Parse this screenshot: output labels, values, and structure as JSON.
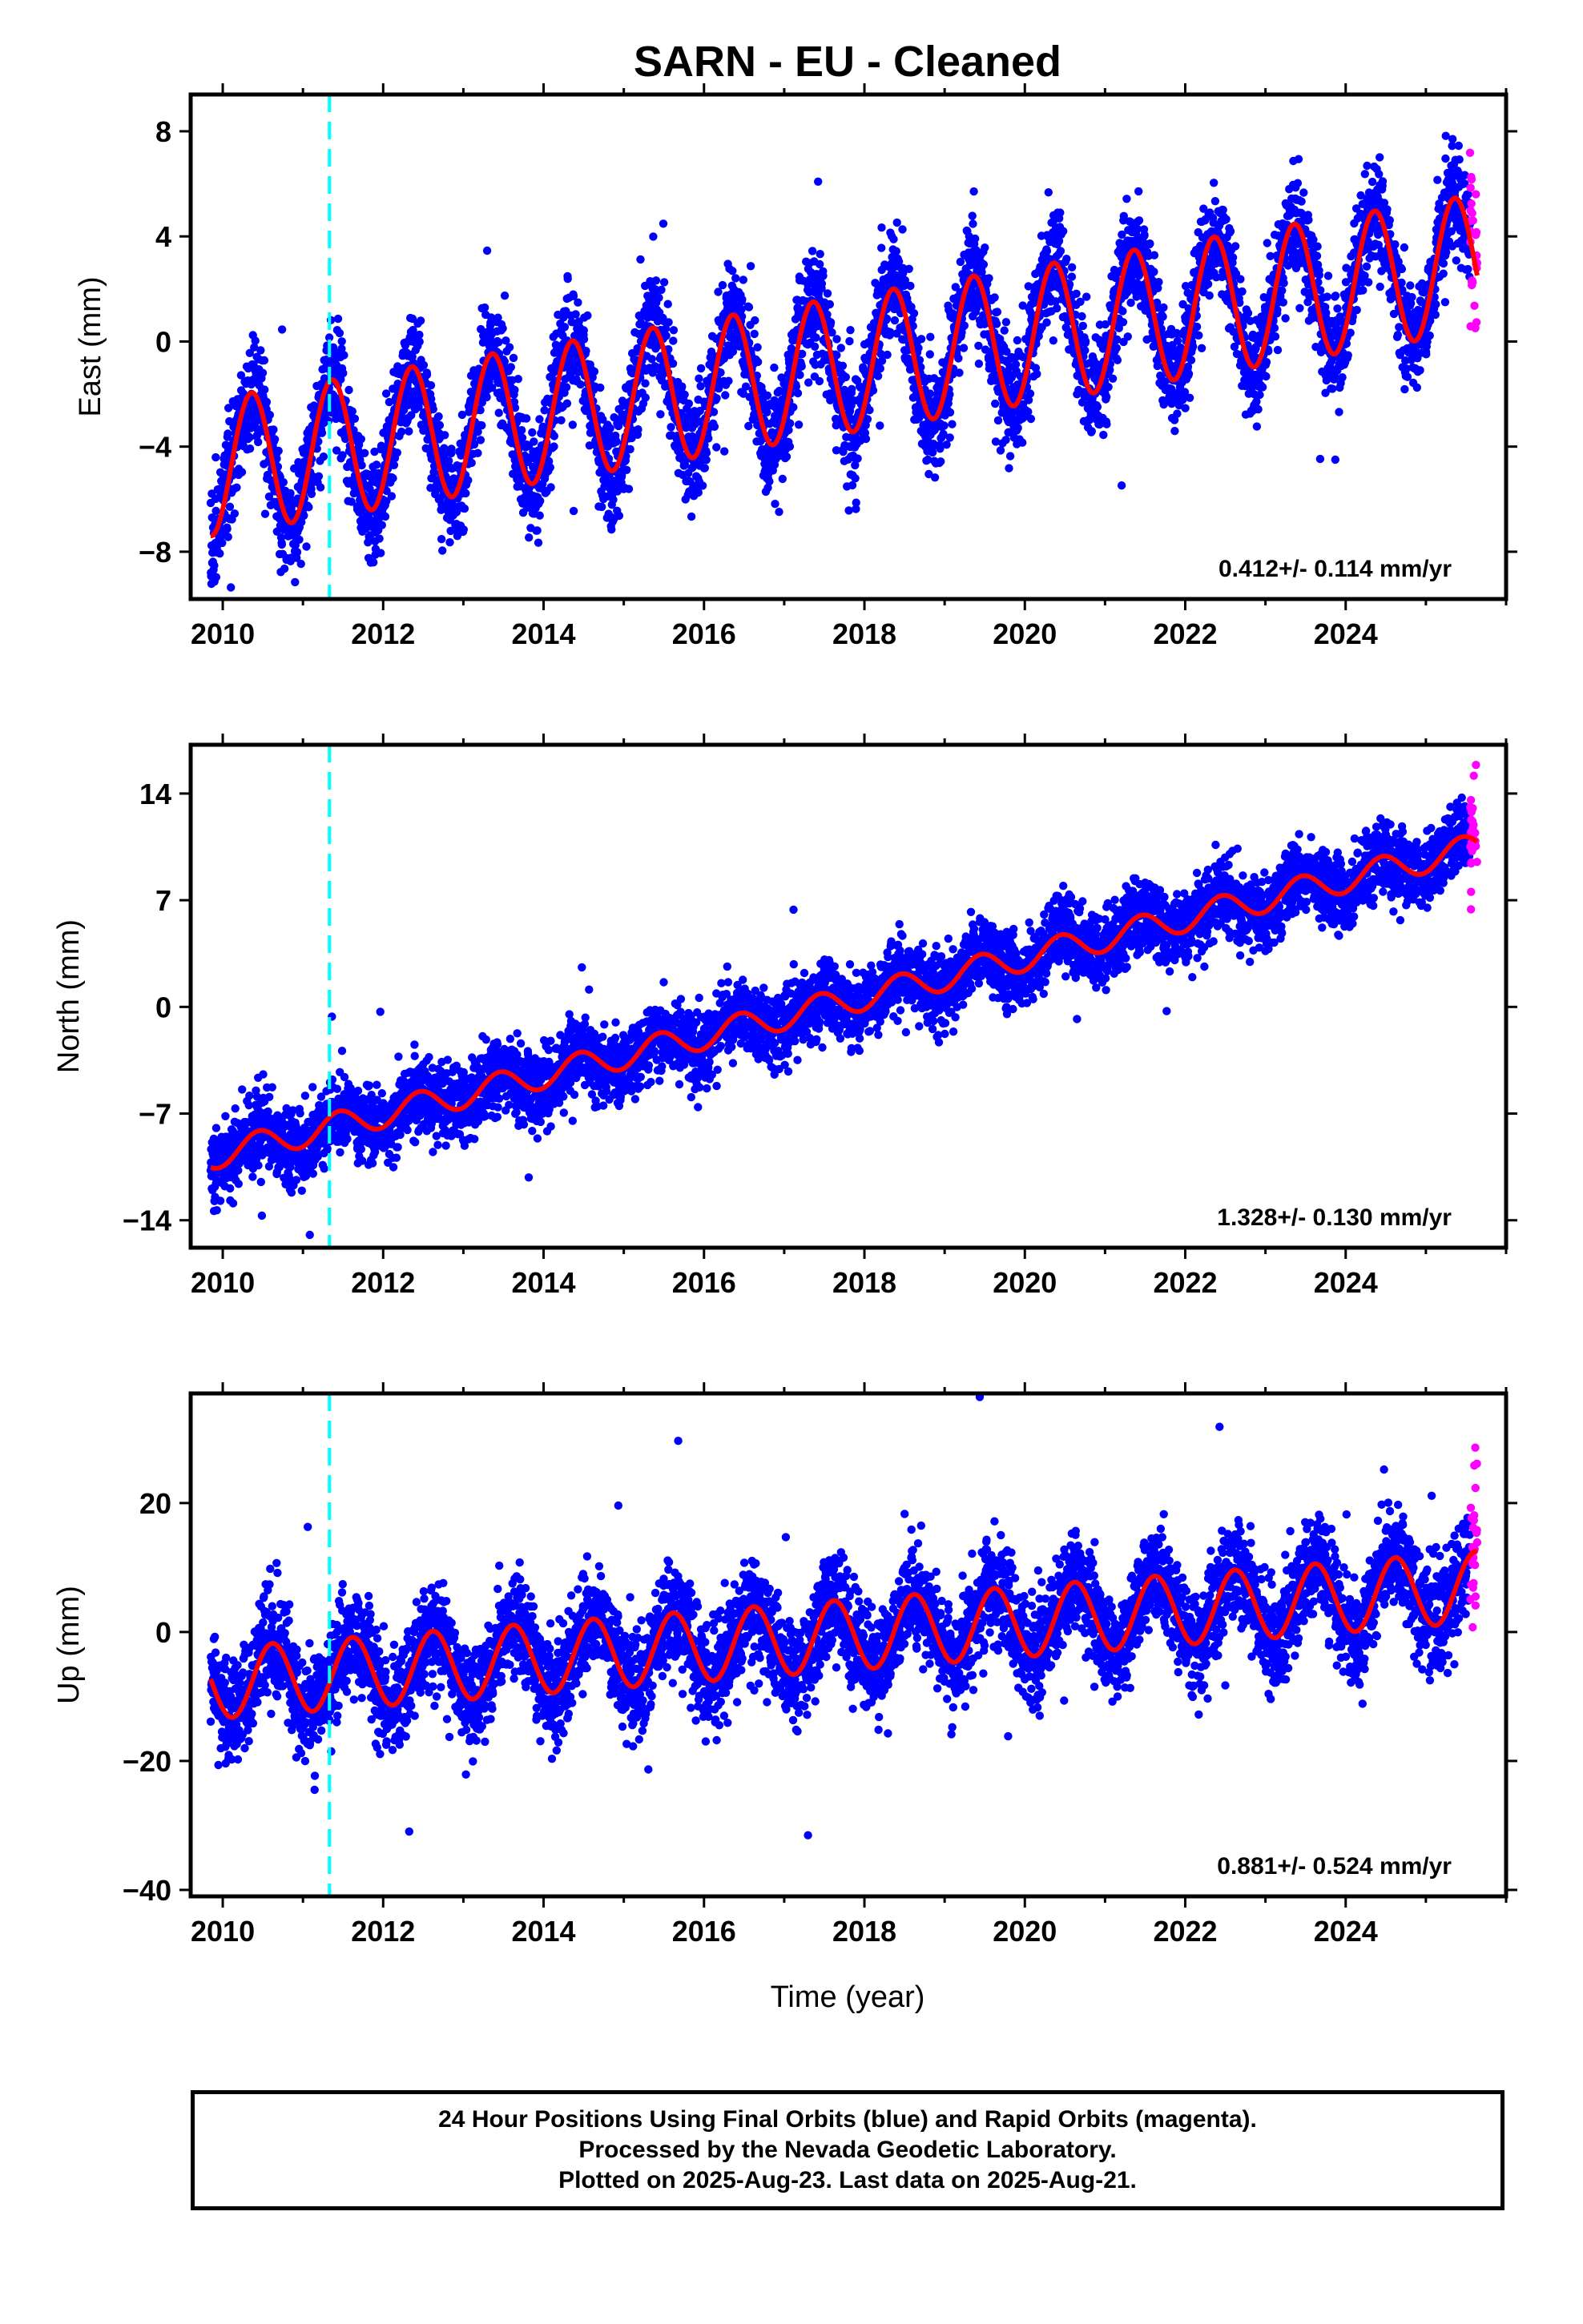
{
  "title": "SARN  - EU - Cleaned",
  "xlabel": "Time (year)",
  "colors": {
    "final_orbits": "#0000ff",
    "rapid_orbits": "#ff00ff",
    "model_fit": "#ff0000",
    "event_line": "#00ffff",
    "axis": "#000000"
  },
  "footer": {
    "line1": "24 Hour Positions Using Final Orbits (blue) and Rapid Orbits (magenta).",
    "line2": "Processed by the Nevada Geodetic Laboratory.",
    "line3": "Plotted on 2025-Aug-23. Last data on 2025-Aug-21."
  },
  "chart_data": [
    {
      "type": "scatter",
      "ylabel": "East (mm)",
      "xlim": [
        2009.6,
        2026.0
      ],
      "ylim": [
        -9.8,
        9.4
      ],
      "xticks": [
        2010,
        2012,
        2014,
        2016,
        2018,
        2020,
        2022,
        2024
      ],
      "yticks": [
        -8,
        -4,
        0,
        4,
        8
      ],
      "rate": "0.412+/- 0.114 mm/yr",
      "event_line_x": 2011.33,
      "data_start": 2009.85,
      "data_end": 2025.64,
      "rapid_start": 2025.55,
      "model": {
        "start_value": -4.8,
        "end_value": 3.0,
        "annual_amplitude": 2.6,
        "annual_peak_phase": 0.36,
        "noise_sd": 1.0
      },
      "series": [
        {
          "name": "Final Orbits (blue)"
        },
        {
          "name": "Rapid Orbits (magenta)"
        }
      ]
    },
    {
      "type": "scatter",
      "ylabel": "North (mm)",
      "xlim": [
        2009.6,
        2026.0
      ],
      "ylim": [
        -15.8,
        17.2
      ],
      "xticks": [
        2010,
        2012,
        2014,
        2016,
        2018,
        2020,
        2022,
        2024
      ],
      "yticks": [
        -14,
        -7,
        0,
        7,
        14
      ],
      "rate": "1.328+/- 0.130 mm/yr",
      "event_line_x": 2011.33,
      "data_start": 2009.85,
      "data_end": 2025.64,
      "rapid_start": 2025.55,
      "model": {
        "start_value": -9.8,
        "end_value": 10.5,
        "annual_amplitude": 0.9,
        "annual_peak_phase": 0.45,
        "noise_sd": 1.2
      },
      "series": [
        {
          "name": "Final Orbits (blue)"
        },
        {
          "name": "Rapid Orbits (magenta)"
        }
      ]
    },
    {
      "type": "scatter",
      "ylabel": "Up (mm)",
      "xlim": [
        2009.6,
        2026.0
      ],
      "ylim": [
        -41,
        37
      ],
      "xticks": [
        2010,
        2012,
        2014,
        2016,
        2018,
        2020,
        2022,
        2024
      ],
      "yticks": [
        -40,
        -20,
        0,
        20
      ],
      "rate": "0.881+/- 0.524 mm/yr",
      "event_line_x": 2011.33,
      "data_start": 2009.85,
      "data_end": 2025.64,
      "rapid_start": 2025.55,
      "model": {
        "start_value": -8.0,
        "end_value": 7.0,
        "annual_amplitude": 5.5,
        "annual_peak_phase": 0.62,
        "noise_sd": 4.0
      },
      "series": [
        {
          "name": "Final Orbits (blue)"
        },
        {
          "name": "Rapid Orbits (magenta)"
        }
      ]
    }
  ]
}
